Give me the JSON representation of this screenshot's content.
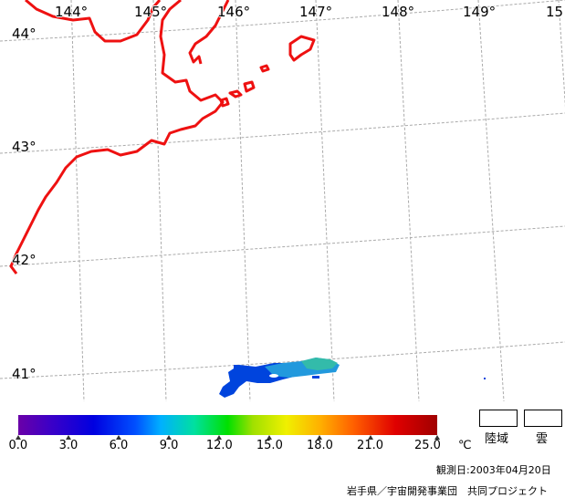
{
  "longitude_labels": [
    "144°",
    "145°",
    "146°",
    "147°",
    "148°",
    "149°",
    "15"
  ],
  "latitude_labels": [
    "44°",
    "43°",
    "42°",
    "41°"
  ],
  "colorbar": {
    "ticks": [
      "0.0",
      "3.0",
      "6.0",
      "9.0",
      "12.0",
      "15.0",
      "18.0",
      "21.0",
      "25.0"
    ],
    "unit": "℃"
  },
  "legend": {
    "land_label": "陸域",
    "cloud_label": "雲"
  },
  "observation_date": "観測日:2003年04月20日",
  "credit": "岩手県／宇宙開発事業団　共同プロジェクト",
  "colors": {
    "coastline": "#ee1111",
    "grid": "#aaaaaa",
    "sst_low": "#0044dd",
    "sst_mid": "#2299dd",
    "sst_high": "#33bbaa"
  }
}
